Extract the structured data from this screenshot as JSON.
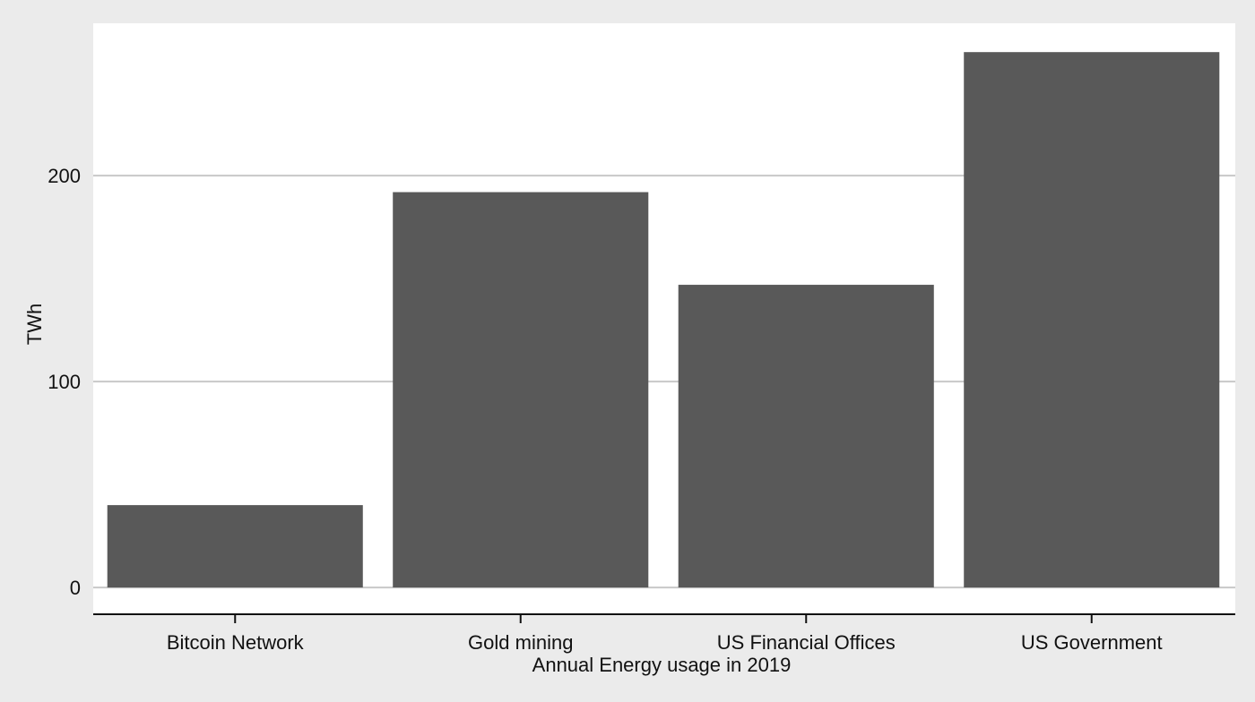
{
  "chart_data": {
    "type": "bar",
    "categories": [
      "Bitcoin Network",
      "Gold mining",
      "US Financial Offices",
      "US Government"
    ],
    "values": [
      40,
      192,
      147,
      260
    ],
    "title": "",
    "xlabel": "Annual Energy usage in 2019",
    "ylabel": "TWh",
    "ylim": [
      -13,
      274
    ],
    "yticks": [
      0,
      100,
      200
    ],
    "grid": true,
    "legend": "none",
    "colors": {
      "bar": "#595959",
      "plot_background": "#ffffff",
      "outer_background": "#ebebeb",
      "gridline": "#c8c8c8",
      "axis": "#111111"
    }
  }
}
